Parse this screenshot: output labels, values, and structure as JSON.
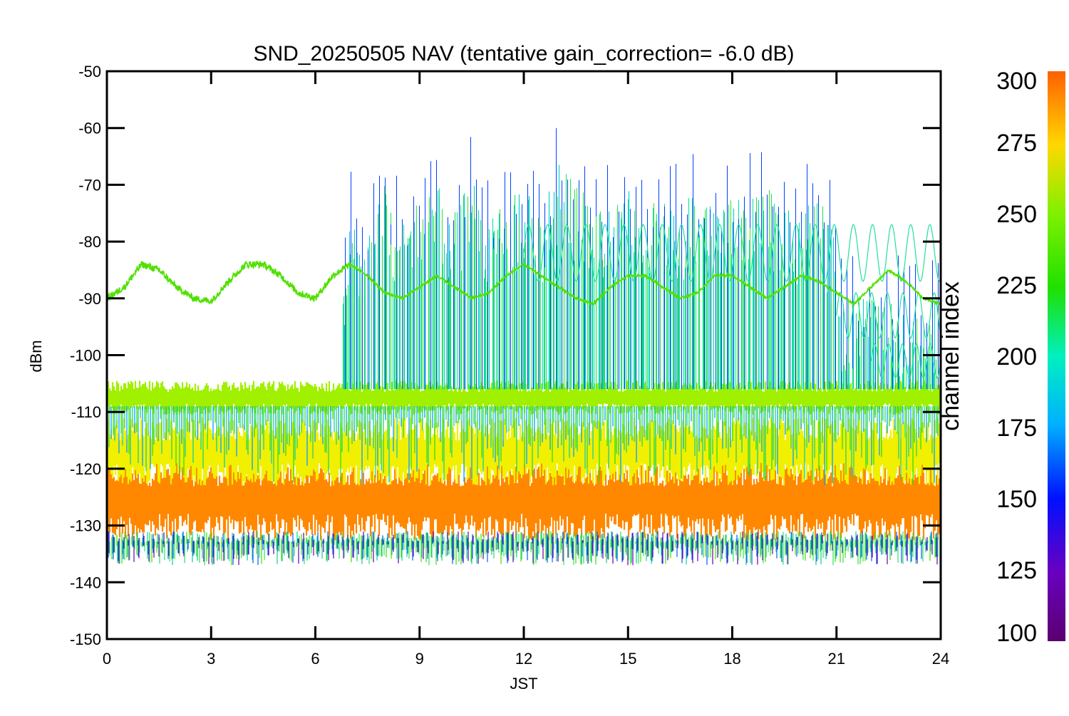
{
  "chart_data": {
    "type": "line",
    "title": "SND_20250505 NAV (tentative gain_correction= -6.0 dB)",
    "xlabel": "JST",
    "ylabel": "dBm",
    "xlim": [
      0,
      24
    ],
    "ylim": [
      -150,
      -50
    ],
    "x_ticks": [
      0,
      3,
      6,
      9,
      12,
      15,
      18,
      21,
      24
    ],
    "y_ticks": [
      -50,
      -60,
      -70,
      -80,
      -90,
      -100,
      -110,
      -120,
      -130,
      -140,
      -150
    ],
    "grid": false,
    "colorbar": {
      "label": "channel index",
      "range": [
        100,
        300
      ],
      "ticks": [
        100,
        125,
        150,
        175,
        200,
        225,
        250,
        275,
        300
      ],
      "colormap": "rainbow"
    },
    "series": [
      {
        "channel": 280,
        "color": "#ff8800",
        "band_center": [
          [
            0,
            -125.5
          ],
          [
            6,
            -125.5
          ],
          [
            12,
            -125.5
          ],
          [
            18,
            -125.5
          ],
          [
            24,
            -125.5
          ]
        ],
        "spread": 6
      },
      {
        "channel": 265,
        "color": "#f0f000",
        "band_center": [
          [
            0,
            -117
          ],
          [
            6,
            -117
          ],
          [
            12,
            -117
          ],
          [
            18,
            -117
          ],
          [
            24,
            -117
          ]
        ],
        "spread": 5
      },
      {
        "channel": 250,
        "color": "#a0f000",
        "band_center": [
          [
            0,
            -107.5
          ],
          [
            6,
            -107.5
          ],
          [
            12,
            -107.5
          ],
          [
            18,
            -107.5
          ],
          [
            24,
            -107.5
          ]
        ],
        "spread": 2.5
      },
      {
        "channel": 230,
        "color": "#50e000",
        "x": [
          0,
          0.5,
          1,
          1.5,
          2,
          2.5,
          3,
          3.5,
          4,
          4.5,
          5,
          5.5,
          6,
          6.5,
          7,
          7.5,
          8,
          8.5,
          9,
          9.5,
          10,
          10.5,
          11,
          11.5,
          12,
          12.5,
          13,
          13.5,
          14,
          14.5,
          15,
          15.5,
          16,
          16.5,
          17,
          17.5,
          18,
          18.5,
          19,
          19.5,
          20,
          20.5,
          21,
          21.5,
          22,
          22.5,
          23,
          23.5,
          24
        ],
        "y": [
          -90,
          -88,
          -84,
          -85,
          -88,
          -90,
          -90.5,
          -87,
          -84,
          -84,
          -86,
          -89,
          -90,
          -86,
          -84,
          -86,
          -89,
          -90,
          -88,
          -86,
          -88,
          -90,
          -89,
          -86,
          -84,
          -86,
          -88,
          -90,
          -91,
          -88,
          -86,
          -86,
          -88,
          -90,
          -89,
          -86,
          -86,
          -88,
          -90,
          -88,
          -86,
          -87,
          -89,
          -91,
          -88,
          -85,
          -87,
          -90,
          -91
        ]
      },
      {
        "channel": 200,
        "color": "#10e0a0",
        "x": [
          6.8,
          7,
          7.5,
          8,
          8.5,
          9,
          9.5,
          10,
          10.5,
          11,
          11.5,
          12,
          12.5,
          13,
          13.5,
          14,
          14.5,
          15,
          15.5,
          16,
          16.5,
          17,
          17.5,
          18,
          18.5,
          19,
          19.5,
          20,
          20.5,
          21
        ],
        "y": [
          -100,
          -85,
          -88,
          -80,
          -86,
          -82,
          -80,
          -84,
          -78,
          -86,
          -82,
          -80,
          -84,
          -76,
          -80,
          -82,
          -84,
          -80,
          -84,
          -82,
          -84,
          -80,
          -84,
          -82,
          -82,
          -80,
          -84,
          -84,
          -82,
          -90
        ]
      }
    ]
  }
}
